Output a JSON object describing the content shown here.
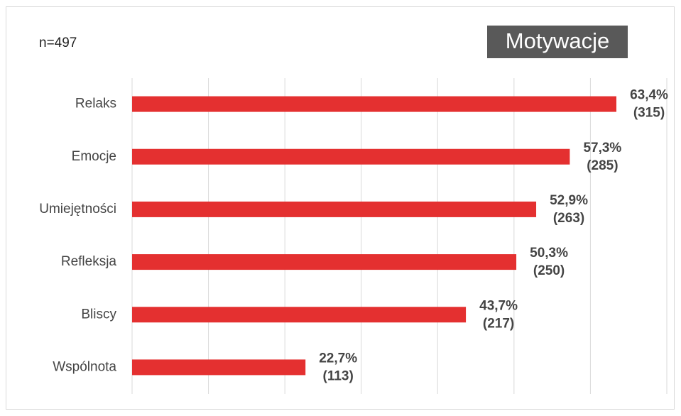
{
  "chart_data": {
    "type": "bar",
    "orientation": "horizontal",
    "title": "Motywacje",
    "subtitle": "n=497",
    "categories": [
      "Relaks",
      "Emocje",
      "Umiejętności",
      "Refleksja",
      "Bliscy",
      "Wspólnota"
    ],
    "values": [
      63.4,
      57.3,
      52.9,
      50.3,
      43.7,
      22.7
    ],
    "value_labels": [
      "63,4%",
      "57,3%",
      "52,9%",
      "50,3%",
      "43,7%",
      "22,7%"
    ],
    "counts": [
      315,
      285,
      263,
      250,
      217,
      113
    ],
    "count_labels": [
      "(315)",
      "(285)",
      "(263)",
      "(250)",
      "(217)",
      "(113)"
    ],
    "color": "#e43030",
    "xlim": [
      0,
      70
    ],
    "xticks": [
      0,
      10,
      20,
      30,
      40,
      50,
      60,
      70
    ],
    "grid": true
  }
}
